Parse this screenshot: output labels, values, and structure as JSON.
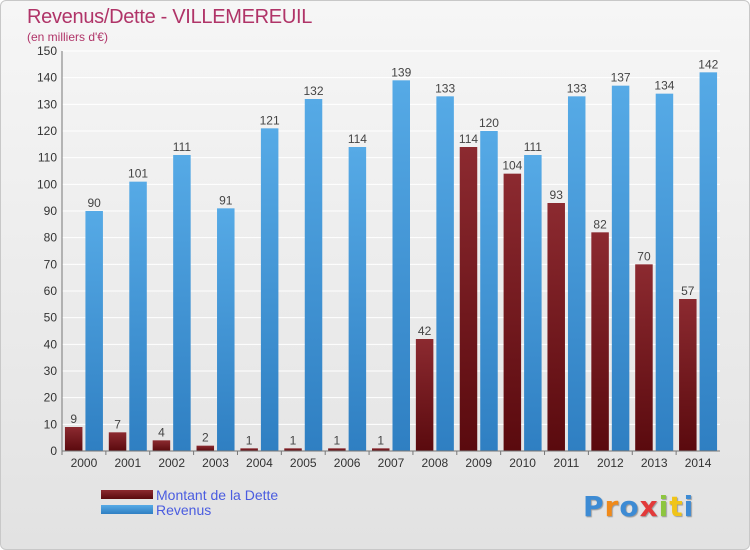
{
  "header": {
    "title": "Revenus/Dette - VILLEMEREUIL",
    "subtitle": "(en milliers d'€)"
  },
  "legend": {
    "items": [
      {
        "label": "Montant de la Dette",
        "color": "#6b0e13"
      },
      {
        "label": "Revenus",
        "color": "#4a9fe0"
      }
    ]
  },
  "logo": {
    "text": "Proxiti",
    "letter_colors": [
      "#3d8bd4",
      "#f08a1a",
      "#3d8bd4",
      "#e23a3a",
      "#8dc63f",
      "#f0c419",
      "#3d8bd4"
    ]
  },
  "chart_data": {
    "type": "bar",
    "categories": [
      "2000",
      "2001",
      "2002",
      "2003",
      "2004",
      "2005",
      "2006",
      "2007",
      "2008",
      "2009",
      "2010",
      "2011",
      "2012",
      "2013",
      "2014"
    ],
    "series": [
      {
        "name": "Montant de la Dette",
        "color": "#6b0e13",
        "values": [
          9,
          7,
          4,
          2,
          1,
          1,
          1,
          1,
          42,
          114,
          104,
          93,
          82,
          70,
          57
        ]
      },
      {
        "name": "Revenus",
        "color": "#4a9fe0",
        "values": [
          90,
          101,
          111,
          91,
          121,
          132,
          114,
          139,
          133,
          120,
          111,
          133,
          137,
          134,
          142
        ]
      }
    ],
    "ylim": [
      0,
      150
    ],
    "yticks": [
      0,
      10,
      20,
      30,
      40,
      50,
      60,
      70,
      80,
      90,
      100,
      110,
      120,
      130,
      140,
      150
    ],
    "grid": true
  }
}
